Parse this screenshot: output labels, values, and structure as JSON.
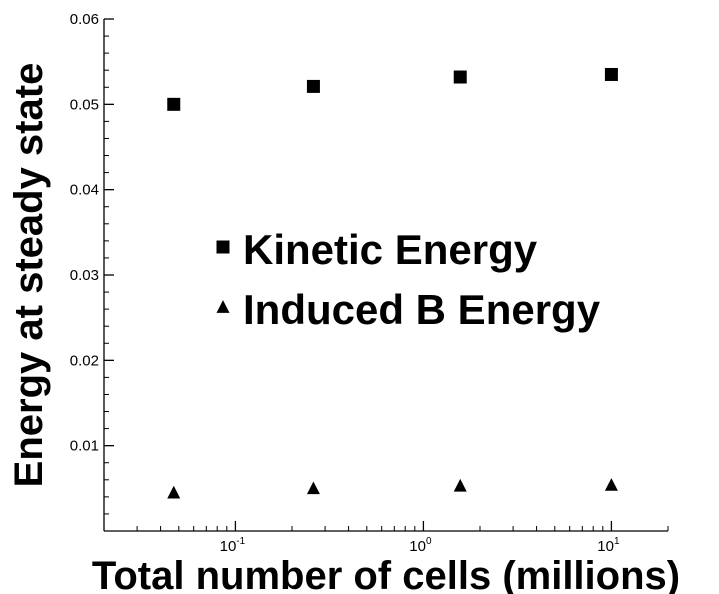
{
  "chart_data": {
    "type": "scatter",
    "title": "",
    "xlabel": "Total number of cells (millions)",
    "ylabel": "Energy at steady state",
    "x_scale": "log",
    "xlim": [
      0.02,
      20
    ],
    "ylim": [
      0,
      0.06
    ],
    "y_ticks": [
      {
        "value": 0.01,
        "label": "0.01"
      },
      {
        "value": 0.02,
        "label": "0.02"
      },
      {
        "value": 0.03,
        "label": "0.03"
      },
      {
        "value": 0.04,
        "label": "0.04"
      },
      {
        "value": 0.05,
        "label": "0.05"
      },
      {
        "value": 0.06,
        "label": "0.06"
      }
    ],
    "x_ticks": [
      {
        "value": 0.1,
        "base": "10",
        "exp": "-1"
      },
      {
        "value": 1,
        "base": "10",
        "exp": "0"
      },
      {
        "value": 10,
        "base": "10",
        "exp": "1"
      }
    ],
    "grid": false,
    "legend_position": "center",
    "series": [
      {
        "name": "Kinetic Energy",
        "marker": "square",
        "color": "#000000",
        "points": [
          {
            "x": 0.047,
            "y": 0.05
          },
          {
            "x": 0.26,
            "y": 0.0521
          },
          {
            "x": 1.57,
            "y": 0.0532
          },
          {
            "x": 10.0,
            "y": 0.0535
          }
        ]
      },
      {
        "name": "Induced B Energy",
        "marker": "triangle",
        "color": "#000000",
        "points": [
          {
            "x": 0.047,
            "y": 0.0045
          },
          {
            "x": 0.26,
            "y": 0.005
          },
          {
            "x": 1.57,
            "y": 0.0053
          },
          {
            "x": 10.0,
            "y": 0.0054
          }
        ]
      }
    ]
  }
}
